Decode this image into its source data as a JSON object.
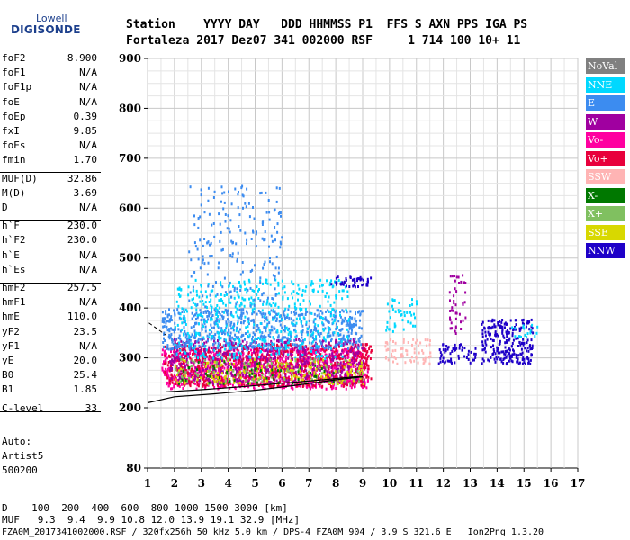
{
  "logo": {
    "top": "Lowell",
    "main": "DIGISONDE"
  },
  "header": {
    "row1": "Station    YYYY DAY   DDD HHMMSS P1  FFS S AXN PPS IGA PS",
    "row2": "Fortaleza 2017 Dez07 341 002000 RSF     1 714 100 10+ 11"
  },
  "params": [
    {
      "label": "foF2",
      "value": "8.900"
    },
    {
      "label": "foF1",
      "value": "N/A"
    },
    {
      "label": "foF1p",
      "value": "N/A"
    },
    {
      "label": "foE",
      "value": "N/A"
    },
    {
      "label": "foEp",
      "value": "0.39"
    },
    {
      "label": "fxI",
      "value": "9.85"
    },
    {
      "label": "foEs",
      "value": "N/A"
    },
    {
      "label": "fmin",
      "value": "1.70"
    },
    {
      "label": "MUF(D)",
      "value": "32.86"
    },
    {
      "label": "M(D)",
      "value": "3.69"
    },
    {
      "label": "D",
      "value": "N/A"
    },
    {
      "label": "h`F",
      "value": "230.0"
    },
    {
      "label": "h`F2",
      "value": "230.0"
    },
    {
      "label": "h`E",
      "value": "N/A"
    },
    {
      "label": "h`Es",
      "value": "N/A"
    },
    {
      "label": "hmF2",
      "value": "257.5"
    },
    {
      "label": "hmF1",
      "value": "N/A"
    },
    {
      "label": "hmE",
      "value": "110.0"
    },
    {
      "label": "yF2",
      "value": "23.5"
    },
    {
      "label": "yF1",
      "value": "N/A"
    },
    {
      "label": "yE",
      "value": "20.0"
    },
    {
      "label": "B0",
      "value": "25.4"
    },
    {
      "label": "B1",
      "value": "1.85"
    },
    {
      "label": "C-level",
      "value": "33"
    }
  ],
  "auto": {
    "line1": "Auto:",
    "line2": "Artist5",
    "line3": "500200"
  },
  "legend": [
    {
      "label": "NoVal",
      "bg": "#808080",
      "fg": "#ffffff"
    },
    {
      "label": "NNE",
      "bg": "#00d8ff",
      "fg": "#ffffff"
    },
    {
      "label": "E",
      "bg": "#3c8cf0",
      "fg": "#ffffff"
    },
    {
      "label": "W",
      "bg": "#a000a0",
      "fg": "#ffffff"
    },
    {
      "label": "Vo-",
      "bg": "#ff00a0",
      "fg": "#ffffff"
    },
    {
      "label": "Vo+",
      "bg": "#e8003c",
      "fg": "#ffffff"
    },
    {
      "label": "SSW",
      "bg": "#ffb4b4",
      "fg": "#ffffff"
    },
    {
      "label": "X-",
      "bg": "#007800",
      "fg": "#ffffff"
    },
    {
      "label": "X+",
      "bg": "#80c060",
      "fg": "#ffffff"
    },
    {
      "label": "SSE",
      "bg": "#d8d800",
      "fg": "#ffffff"
    },
    {
      "label": "NNW",
      "bg": "#1e00c8",
      "fg": "#ffffff"
    }
  ],
  "bottom": {
    "row1": "D    100  200  400  600  800 1000 1500 3000 [km]",
    "row2": "MUF   9.3  9.4  9.9 10.8 12.0 13.9 19.1 32.9 [MHz]",
    "row3": "FZA0M_2017341002000.RSF / 320fx256h 50 kHz 5.0 km / DPS-4 FZA0M 904 / 3.9 S 321.6 E   Ion2Png 1.3.20"
  },
  "chart_data": {
    "type": "scatter",
    "x_ticks": [
      "1",
      "2",
      "3",
      "4",
      "5",
      "6",
      "7",
      "8",
      "9",
      "10",
      "11",
      "12",
      "13",
      "14",
      "15",
      "16",
      "17"
    ],
    "y_ticks": [
      "80",
      "200",
      "300",
      "400",
      "500",
      "600",
      "700",
      "800",
      "900"
    ],
    "xlim": [
      1,
      17
    ],
    "grid": true,
    "clusters": [
      {
        "color": "#ff00a0",
        "x": [
          1.5,
          9.2
        ],
        "y": [
          240,
          320
        ],
        "density": 0.9
      },
      {
        "color": "#e8003c",
        "x": [
          1.6,
          9.3
        ],
        "y": [
          245,
          330
        ],
        "density": 0.6
      },
      {
        "color": "#a000a0",
        "x": [
          1.8,
          9.0
        ],
        "y": [
          250,
          340
        ],
        "density": 0.5
      },
      {
        "color": "#3c8cf0",
        "x": [
          1.5,
          9.0
        ],
        "y": [
          320,
          400
        ],
        "density": 0.6
      },
      {
        "color": "#00d8ff",
        "x": [
          2.0,
          8.5
        ],
        "y": [
          300,
          460
        ],
        "density": 0.25
      },
      {
        "color": "#3c8cf0",
        "x": [
          2.5,
          6.0
        ],
        "y": [
          380,
          650
        ],
        "density": 0.12
      },
      {
        "color": "#d8d800",
        "x": [
          2.0,
          9.0
        ],
        "y": [
          250,
          300
        ],
        "density": 0.3
      },
      {
        "color": "#80c060",
        "x": [
          2.0,
          9.0
        ],
        "y": [
          250,
          300
        ],
        "density": 0.15
      },
      {
        "color": "#007800",
        "x": [
          2.0,
          8.0
        ],
        "y": [
          250,
          300
        ],
        "density": 0.1
      },
      {
        "color": "#1e00c8",
        "x": [
          7.8,
          9.3
        ],
        "y": [
          445,
          465
        ],
        "density": 0.8
      },
      {
        "color": "#ffb4b4",
        "x": [
          9.8,
          11.5
        ],
        "y": [
          290,
          340
        ],
        "density": 0.45
      },
      {
        "color": "#00d8ff",
        "x": [
          9.8,
          11.0
        ],
        "y": [
          355,
          420
        ],
        "density": 0.3
      },
      {
        "color": "#1e00c8",
        "x": [
          11.8,
          13.2
        ],
        "y": [
          290,
          330
        ],
        "density": 0.55
      },
      {
        "color": "#a000a0",
        "x": [
          12.2,
          12.8
        ],
        "y": [
          350,
          470
        ],
        "density": 0.35
      },
      {
        "color": "#1e00c8",
        "x": [
          13.4,
          15.3
        ],
        "y": [
          290,
          380
        ],
        "density": 0.75
      },
      {
        "color": "#00d8ff",
        "x": [
          14.5,
          15.5
        ],
        "y": [
          340,
          370
        ],
        "density": 0.3
      }
    ],
    "profile_curves": [
      {
        "x": [
          1.0,
          2.0,
          3.5,
          5.0,
          6.5,
          8.0,
          9.0
        ],
        "y": [
          210,
          222,
          228,
          235,
          245,
          256,
          262
        ]
      },
      {
        "x": [
          1.7,
          3.0,
          4.5,
          6.0,
          7.5,
          8.7,
          9.0
        ],
        "y": [
          232,
          236,
          242,
          249,
          256,
          262,
          262
        ]
      }
    ]
  }
}
